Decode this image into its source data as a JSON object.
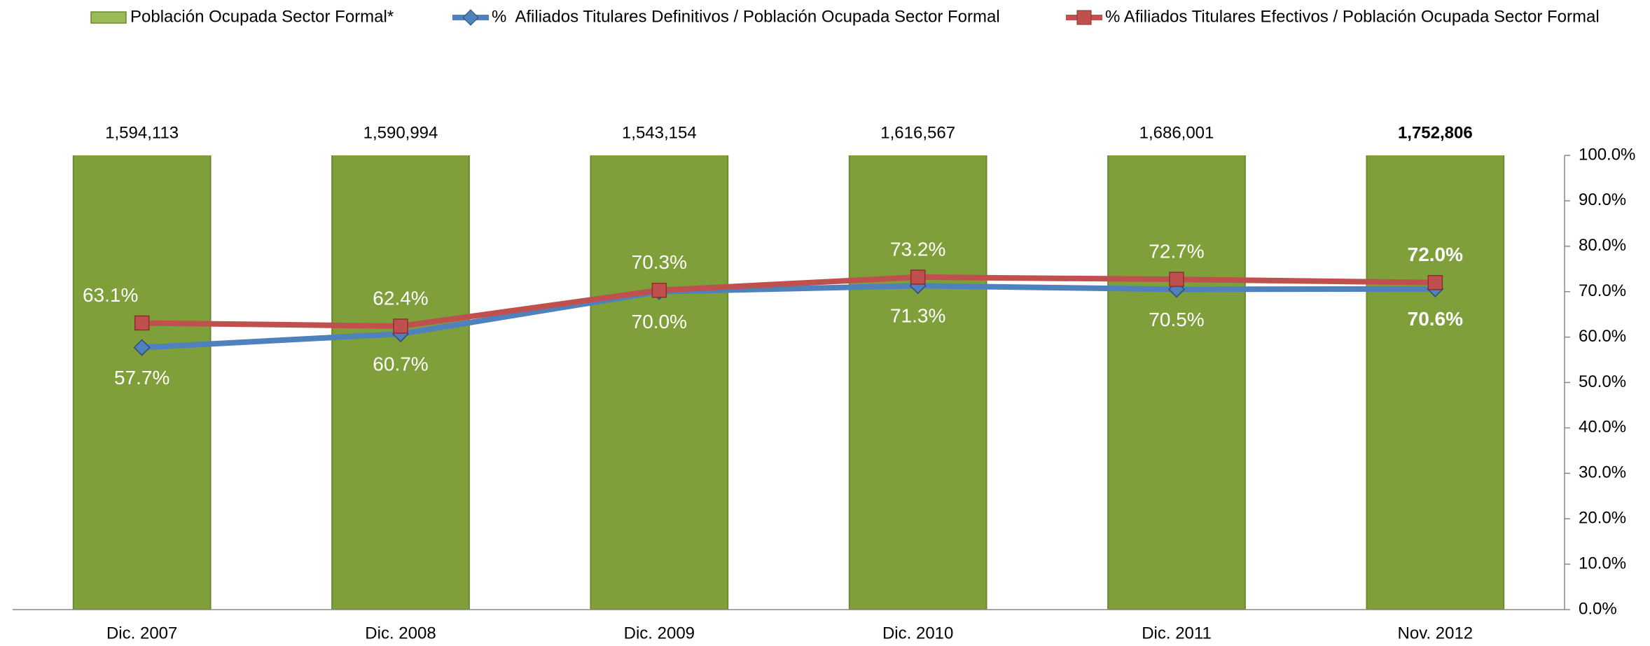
{
  "chart_data": {
    "type": "bar",
    "categories": [
      "Dic. 2007",
      "Dic. 2008",
      "Dic. 2009",
      "Dic. 2010",
      "Dic. 2011",
      "Nov. 2012"
    ],
    "series": [
      {
        "name": "Población Ocupada Sector Formal*",
        "type": "bar",
        "color": "#7f9f3a",
        "values": [
          1594113,
          1590994,
          1543154,
          1616567,
          1686001,
          1752806
        ],
        "value_labels": [
          "1,594,113",
          "1,590,994",
          "1,543,154",
          "1,616,567",
          "1,686,001",
          "1,752,806"
        ]
      },
      {
        "name": "%  Afiliados Titulares Definitivos / Población Ocupada Sector Formal",
        "type": "line",
        "axis": "y2",
        "color": "#4f81bd",
        "values": [
          57.7,
          60.7,
          70.0,
          71.3,
          70.5,
          70.6
        ],
        "value_labels": [
          "57.7%",
          "60.7%",
          "70.0%",
          "71.3%",
          "70.5%",
          "70.6%"
        ]
      },
      {
        "name": "% Afiliados Titulares Efectivos / Población Ocupada Sector Formal",
        "type": "line",
        "axis": "y2",
        "color": "#c0504d",
        "values": [
          63.1,
          62.4,
          70.3,
          73.2,
          72.7,
          72.0
        ],
        "value_labels": [
          "63.1%",
          "62.4%",
          "70.3%",
          "73.2%",
          "72.7%",
          "72.0%"
        ]
      }
    ],
    "ylim": [
      0,
      1500000
    ],
    "y2lim": [
      0,
      100
    ],
    "y2ticks": [
      {
        "value": 0,
        "label": "0.0%"
      },
      {
        "value": 10,
        "label": "10.0%"
      },
      {
        "value": 20,
        "label": "20.0%"
      },
      {
        "value": 30,
        "label": "30.0%"
      },
      {
        "value": 40,
        "label": "40.0%"
      },
      {
        "value": 50,
        "label": "50.0%"
      },
      {
        "value": 60,
        "label": "60.0%"
      },
      {
        "value": 70,
        "label": "70.0%"
      },
      {
        "value": 80,
        "label": "80.0%"
      },
      {
        "value": 90,
        "label": "90.0%"
      },
      {
        "value": 100,
        "label": "100.0%"
      }
    ],
    "legend": "top"
  }
}
